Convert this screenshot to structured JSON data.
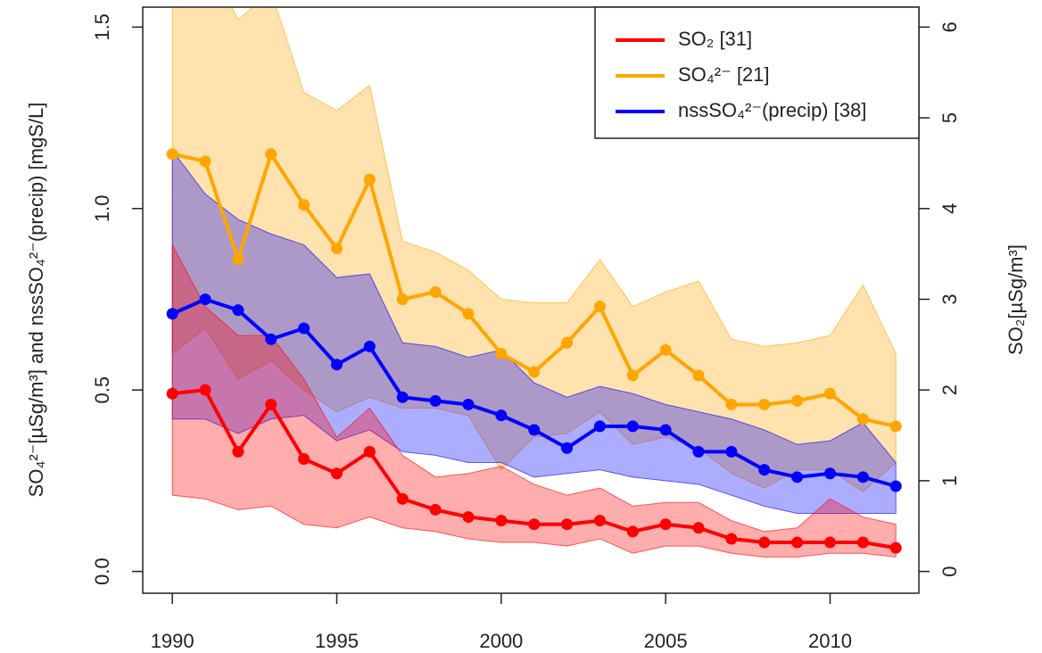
{
  "chart_data": {
    "type": "line",
    "y_label": "SO₄²⁻[µSg/m³] and nssSO₄²⁻(precip) [mgS/L]",
    "y2_label": "SO₂[µSg/m³]",
    "x": [
      1990,
      1991,
      1992,
      1993,
      1994,
      1995,
      1996,
      1997,
      1998,
      1999,
      2000,
      2001,
      2002,
      2003,
      2004,
      2005,
      2006,
      2007,
      2008,
      2009,
      2010,
      2011,
      2012
    ],
    "xlim": [
      1989.1,
      2012.7
    ],
    "xticks": [
      1990,
      1995,
      2000,
      2005,
      2010
    ],
    "ylim": [
      -0.06,
      1.555
    ],
    "yticks": [
      {
        "value": 0,
        "label": "0.0"
      },
      {
        "value": 0.5,
        "label": "0.5"
      },
      {
        "value": 1,
        "label": "1.0"
      },
      {
        "value": 1.5,
        "label": "1.5"
      }
    ],
    "y2lim": [
      -0.24,
      6.22
    ],
    "y2ticks": [
      0,
      1,
      2,
      3,
      4,
      5,
      6
    ],
    "legend": "top-right",
    "series": [
      {
        "name": "SO₄²⁻ [21]",
        "color": "#FFA500",
        "values": [
          1.15,
          1.13,
          0.86,
          1.15,
          1.01,
          0.89,
          1.08,
          0.75,
          0.77,
          0.71,
          0.6,
          0.55,
          0.63,
          0.73,
          0.54,
          0.61,
          0.54,
          0.46,
          0.46,
          0.47,
          0.49,
          0.42,
          0.4
        ],
        "upper": [
          1.75,
          1.7,
          1.52,
          1.6,
          1.32,
          1.27,
          1.34,
          0.91,
          0.88,
          0.83,
          0.75,
          0.74,
          0.74,
          0.86,
          0.73,
          0.77,
          0.8,
          0.64,
          0.62,
          0.63,
          0.65,
          0.79,
          0.6
        ],
        "lower": [
          0.6,
          0.67,
          0.53,
          0.58,
          0.5,
          0.44,
          0.48,
          0.45,
          0.45,
          0.43,
          0.28,
          0.37,
          0.38,
          0.44,
          0.35,
          0.37,
          0.34,
          0.27,
          0.23,
          0.28,
          0.28,
          0.22,
          0.3
        ]
      },
      {
        "name": "nssSO₄²⁻(precip) [38]",
        "color": "#0000FF",
        "values": [
          0.71,
          0.75,
          0.72,
          0.64,
          0.67,
          0.57,
          0.62,
          0.48,
          0.47,
          0.46,
          0.43,
          0.39,
          0.34,
          0.4,
          0.4,
          0.39,
          0.33,
          0.33,
          0.28,
          0.26,
          0.27,
          0.26,
          0.235
        ],
        "upper": [
          1.16,
          1.04,
          0.97,
          0.93,
          0.9,
          0.81,
          0.82,
          0.63,
          0.62,
          0.59,
          0.61,
          0.52,
          0.48,
          0.51,
          0.49,
          0.46,
          0.44,
          0.42,
          0.39,
          0.35,
          0.36,
          0.41,
          0.3
        ],
        "lower": [
          0.42,
          0.42,
          0.38,
          0.42,
          0.43,
          0.36,
          0.39,
          0.33,
          0.32,
          0.3,
          0.3,
          0.26,
          0.27,
          0.28,
          0.26,
          0.25,
          0.24,
          0.21,
          0.18,
          0.16,
          0.16,
          0.16,
          0.16
        ]
      },
      {
        "name": "SO₂ [31]",
        "color": "#FF0000",
        "axis": "y2",
        "values": [
          1.96,
          2.0,
          1.32,
          1.84,
          1.24,
          1.08,
          1.32,
          0.8,
          0.68,
          0.6,
          0.56,
          0.52,
          0.52,
          0.56,
          0.44,
          0.52,
          0.48,
          0.36,
          0.32,
          0.32,
          0.32,
          0.32,
          0.26
        ],
        "upper": [
          3.6,
          2.92,
          2.6,
          2.6,
          2.12,
          1.48,
          1.8,
          1.28,
          1.04,
          1.08,
          1.16,
          0.96,
          0.84,
          0.92,
          0.72,
          0.76,
          0.76,
          0.56,
          0.44,
          0.48,
          0.8,
          0.6,
          0.52
        ],
        "lower": [
          0.84,
          0.8,
          0.68,
          0.72,
          0.52,
          0.48,
          0.6,
          0.48,
          0.44,
          0.36,
          0.32,
          0.32,
          0.28,
          0.36,
          0.2,
          0.28,
          0.28,
          0.2,
          0.16,
          0.16,
          0.2,
          0.2,
          0.16
        ]
      }
    ]
  }
}
